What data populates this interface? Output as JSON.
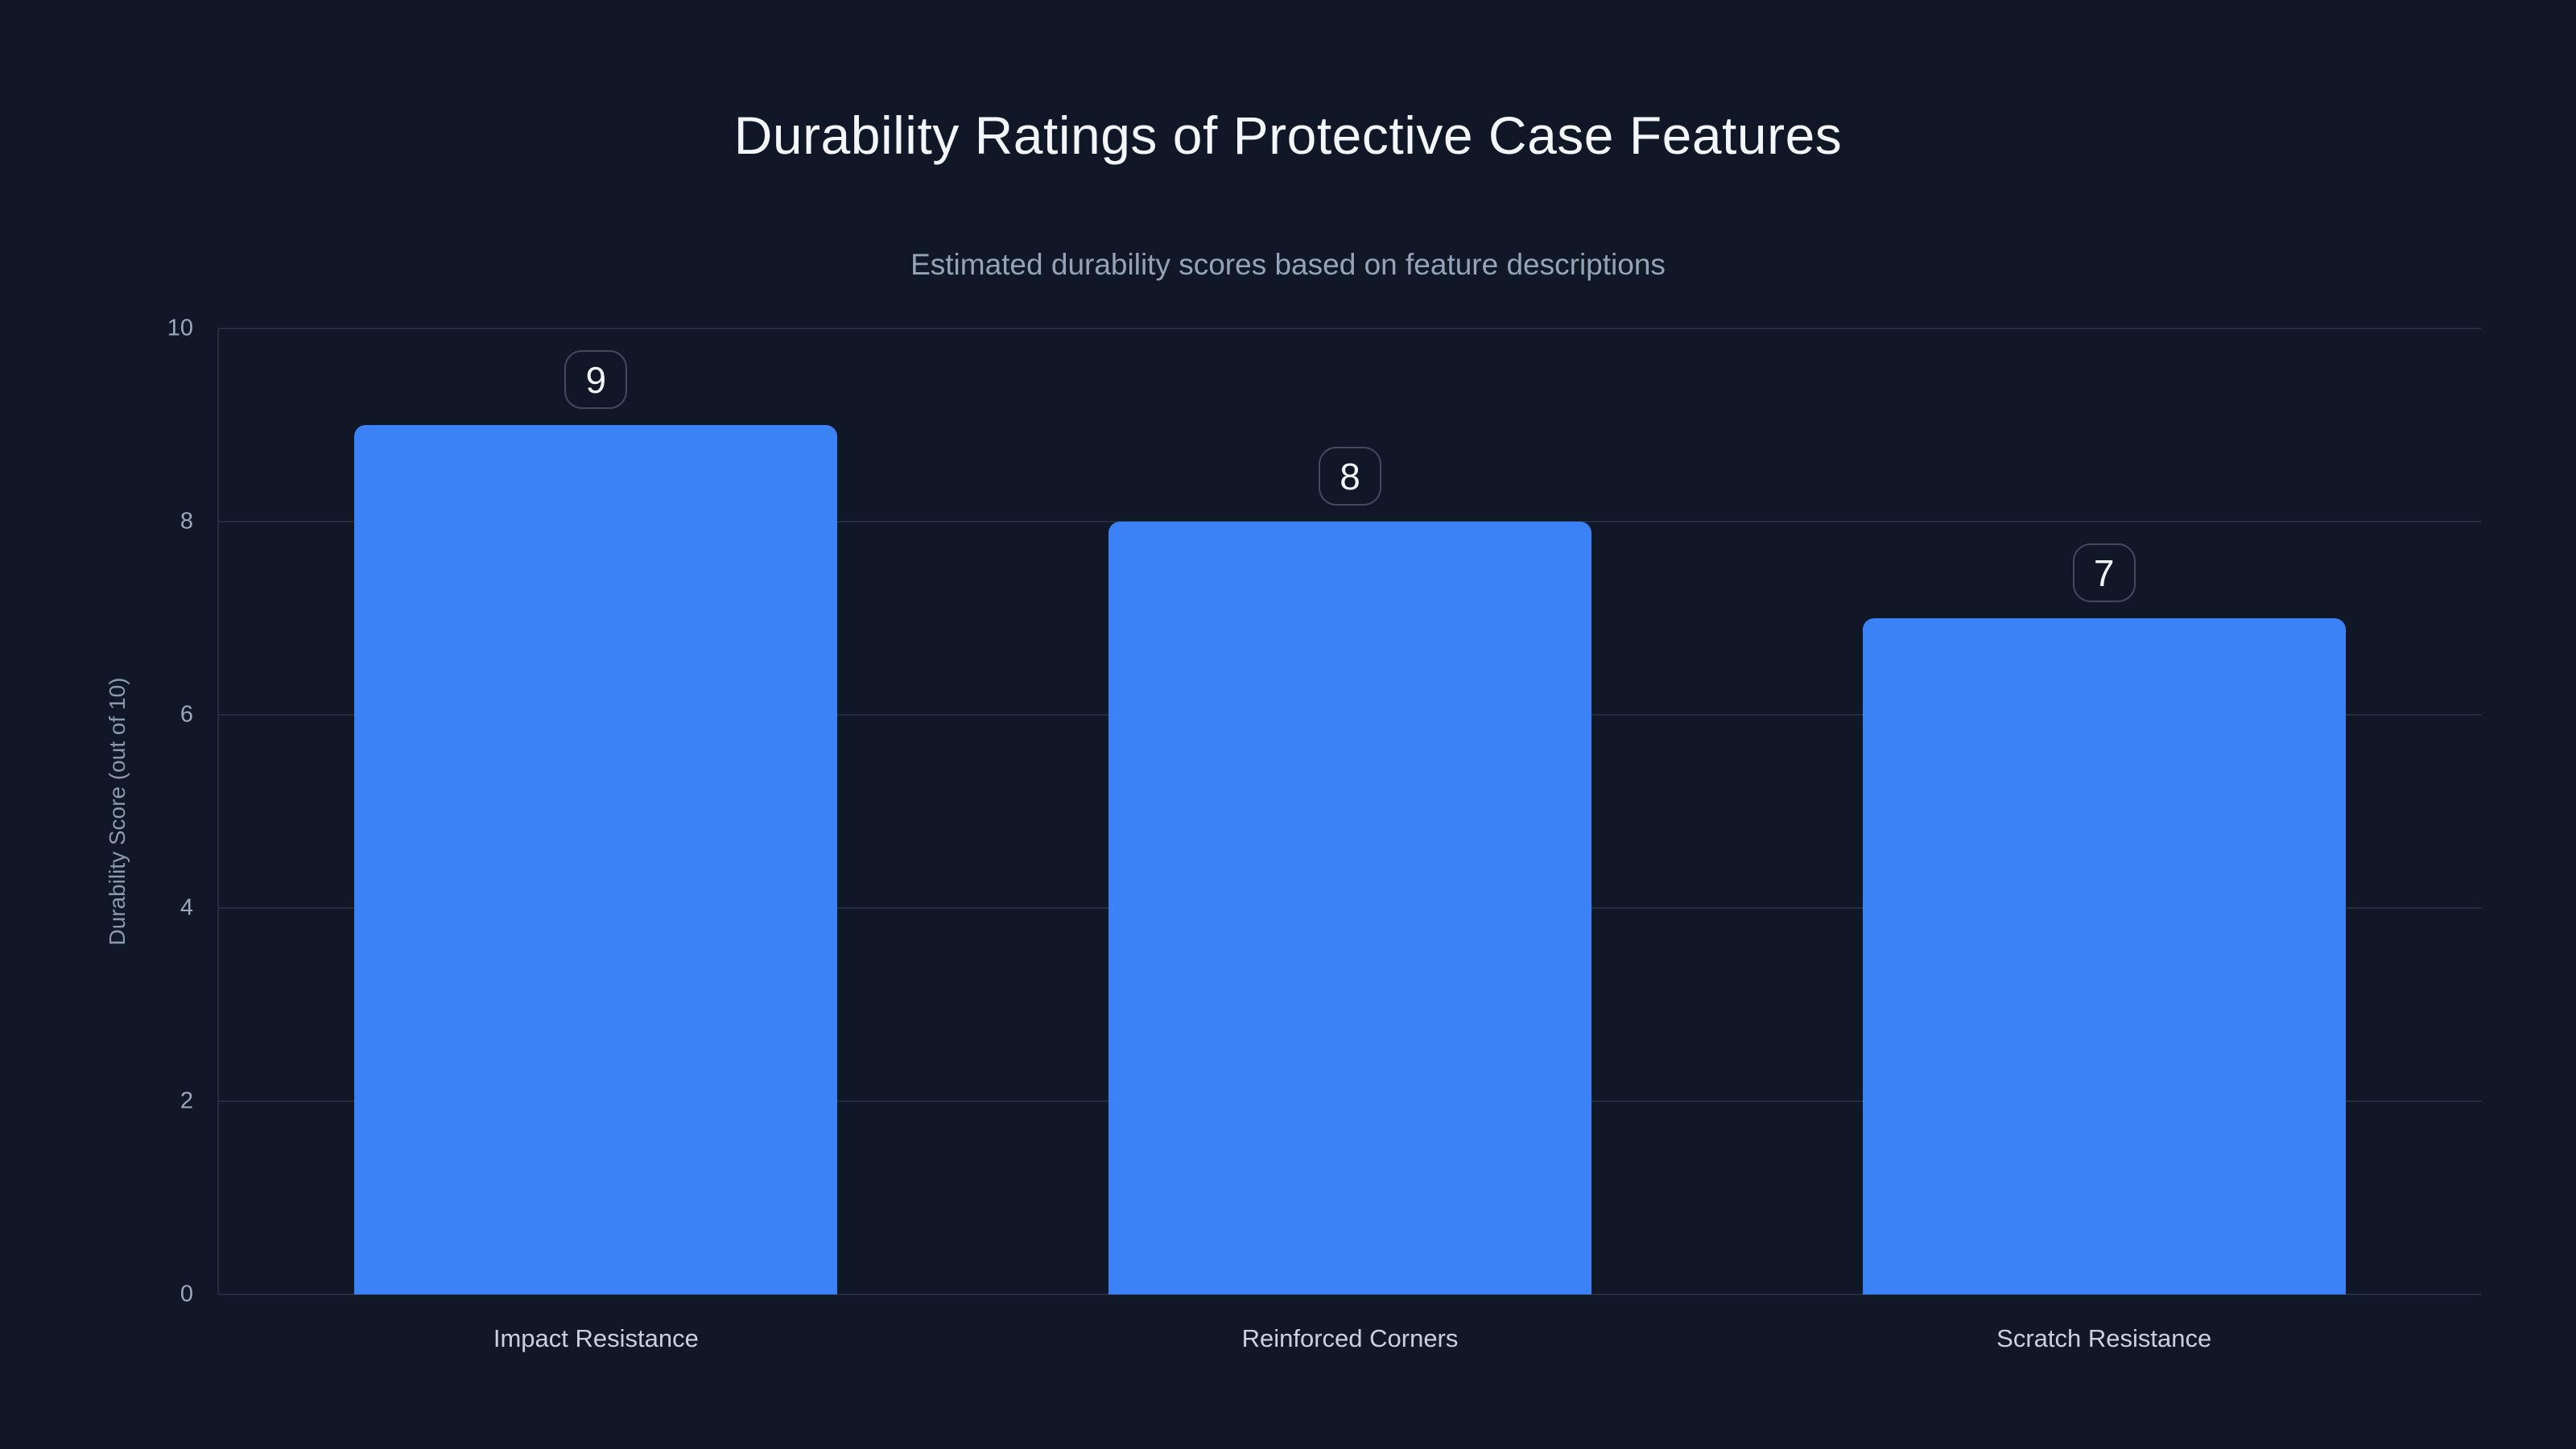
{
  "page": {
    "background_color": "#101828"
  },
  "header": {
    "title": "Durability Ratings of Protective Case Features",
    "subtitle": "Estimated durability scores based on feature descriptions"
  },
  "chart_data": {
    "type": "bar",
    "title": "Durability Ratings of Protective Case Features",
    "subtitle": "Estimated durability scores based on feature descriptions",
    "categories": [
      "Impact Resistance",
      "Reinforced Corners",
      "Scratch Resistance"
    ],
    "values": [
      9,
      8,
      7
    ],
    "value_labels": [
      "9",
      "8",
      "7"
    ],
    "xlabel": "",
    "ylabel": "Durability Score (out of 10)",
    "ylim": [
      0,
      10
    ],
    "yticks_desc": [
      10,
      8,
      6,
      4,
      2,
      0
    ],
    "ytick_labels": [
      "10",
      "8",
      "6",
      "4",
      "2",
      "0"
    ],
    "grid": true,
    "legend": false,
    "bar_color": "#3b82f6",
    "gridline_color": "#232e41",
    "title_color": "#f3f6fa",
    "subtitle_color": "#94a3b8",
    "tick_label_color": "#9aa8bb",
    "category_label_color": "#c7d2e0",
    "badge_border_color": "#3f4b61",
    "badge_text_color": "#f1f5f9"
  }
}
